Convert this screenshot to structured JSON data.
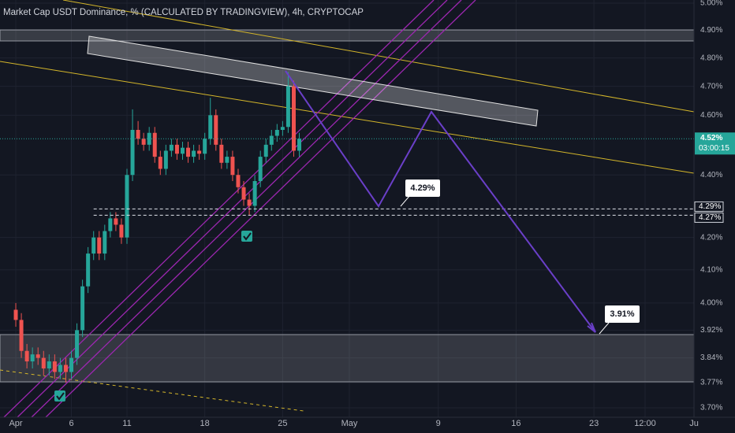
{
  "chart_data": {
    "type": "candlestick",
    "title": "Market Cap USDT Dominance, % (CALCULATED BY TRADINGVIEW), 4h, CRYPTOCAP",
    "x": [
      0,
      0.5,
      1,
      1.5,
      2,
      2.5,
      3,
      3.5,
      4,
      4.5,
      5,
      5.5,
      6,
      6.5,
      7,
      7.5,
      8,
      8.5,
      9,
      9.5,
      10,
      10.5,
      11,
      11.5,
      12,
      12.5,
      13,
      13.5,
      14,
      14.5,
      15,
      15.5,
      16,
      16.5,
      17,
      17.5,
      18,
      18.5,
      19,
      19.5,
      20,
      20.5,
      21,
      21.5,
      22,
      22.5,
      23,
      23.5,
      24,
      24.5,
      25,
      25.5
    ],
    "open": [
      3.98,
      3.95,
      3.86,
      3.83,
      3.85,
      3.84,
      3.81,
      3.83,
      3.8,
      3.82,
      3.8,
      3.84,
      3.92,
      4.05,
      4.15,
      4.2,
      4.15,
      4.22,
      4.26,
      4.24,
      4.2,
      4.4,
      4.55,
      4.52,
      4.5,
      4.54,
      4.46,
      4.42,
      4.48,
      4.5,
      4.47,
      4.49,
      4.46,
      4.48,
      4.47,
      4.52,
      4.6,
      4.5,
      4.44,
      4.46,
      4.4,
      4.36,
      4.32,
      4.3,
      4.38,
      4.46,
      4.5,
      4.53,
      4.55,
      4.56,
      4.7,
      4.48
    ],
    "high": [
      4.0,
      3.97,
      3.88,
      3.87,
      3.87,
      3.86,
      3.85,
      3.85,
      3.84,
      3.84,
      3.86,
      3.94,
      4.07,
      4.17,
      4.22,
      4.22,
      4.24,
      4.28,
      4.28,
      4.26,
      4.42,
      4.62,
      4.58,
      4.54,
      4.56,
      4.56,
      4.48,
      4.5,
      4.52,
      4.52,
      4.51,
      4.51,
      4.5,
      4.5,
      4.54,
      4.66,
      4.62,
      4.52,
      4.48,
      4.48,
      4.42,
      4.38,
      4.34,
      4.4,
      4.48,
      4.52,
      4.55,
      4.57,
      4.58,
      4.75,
      4.72,
      4.54
    ],
    "low": [
      3.93,
      3.84,
      3.81,
      3.81,
      3.82,
      3.79,
      3.79,
      3.78,
      3.78,
      3.77,
      3.78,
      3.82,
      3.9,
      4.03,
      4.13,
      4.13,
      4.13,
      4.2,
      4.22,
      4.18,
      4.18,
      4.38,
      4.5,
      4.48,
      4.48,
      4.44,
      4.4,
      4.4,
      4.46,
      4.45,
      4.45,
      4.44,
      4.44,
      4.45,
      4.45,
      4.5,
      4.48,
      4.42,
      4.42,
      4.38,
      4.34,
      4.3,
      4.27,
      4.28,
      4.36,
      4.44,
      4.48,
      4.51,
      4.53,
      4.54,
      4.46,
      4.46
    ],
    "close": [
      3.95,
      3.86,
      3.83,
      3.85,
      3.84,
      3.81,
      3.83,
      3.8,
      3.82,
      3.8,
      3.84,
      3.92,
      4.05,
      4.15,
      4.2,
      4.15,
      4.22,
      4.26,
      4.24,
      4.2,
      4.4,
      4.55,
      4.52,
      4.5,
      4.54,
      4.46,
      4.42,
      4.48,
      4.5,
      4.47,
      4.49,
      4.46,
      4.48,
      4.47,
      4.52,
      4.6,
      4.5,
      4.44,
      4.46,
      4.4,
      4.36,
      4.32,
      4.3,
      4.38,
      4.46,
      4.5,
      4.53,
      4.55,
      4.56,
      4.7,
      4.48,
      4.52
    ],
    "up_color": "#26a69a",
    "down_color": "#ef5350",
    "ylim": [
      3.7,
      5.0
    ],
    "log_scale": true,
    "yticks": [
      {
        "value": 5.0,
        "label": "5.00%"
      },
      {
        "value": 4.9,
        "label": "4.90%"
      },
      {
        "value": 4.8,
        "label": "4.80%"
      },
      {
        "value": 4.7,
        "label": "4.70%"
      },
      {
        "value": 4.6,
        "label": "4.60%"
      },
      {
        "value": 4.4,
        "label": "4.40%"
      },
      {
        "value": 4.2,
        "label": "4.20%"
      },
      {
        "value": 4.1,
        "label": "4.10%"
      },
      {
        "value": 4.0,
        "label": "4.00%"
      },
      {
        "value": 3.92,
        "label": "3.92%"
      },
      {
        "value": 3.84,
        "label": "3.84%"
      },
      {
        "value": 3.77,
        "label": "3.77%"
      },
      {
        "value": 3.7,
        "label": "3.70%"
      }
    ],
    "xlim": [
      -1.42,
      61
    ],
    "xticks": [
      {
        "value": 0,
        "label": "Apr"
      },
      {
        "value": 5,
        "label": "6"
      },
      {
        "value": 10,
        "label": "11"
      },
      {
        "value": 17,
        "label": "18"
      },
      {
        "value": 24,
        "label": "25"
      },
      {
        "value": 30,
        "label": "May"
      },
      {
        "value": 38,
        "label": "9"
      },
      {
        "value": 45,
        "label": "16"
      },
      {
        "value": 52,
        "label": "23"
      },
      {
        "value": 56.6,
        "label": "12:00"
      },
      {
        "value": 61,
        "label": "Ju"
      }
    ],
    "price_levels": [
      {
        "value": 4.29,
        "label": "4.29%"
      },
      {
        "value": 4.27,
        "label": "4.27%"
      }
    ],
    "last_price": {
      "value": 4.52,
      "label": "4.52%"
    },
    "countdown": "03:00:15",
    "annotations": [
      "4.29%",
      "3.91%"
    ]
  }
}
